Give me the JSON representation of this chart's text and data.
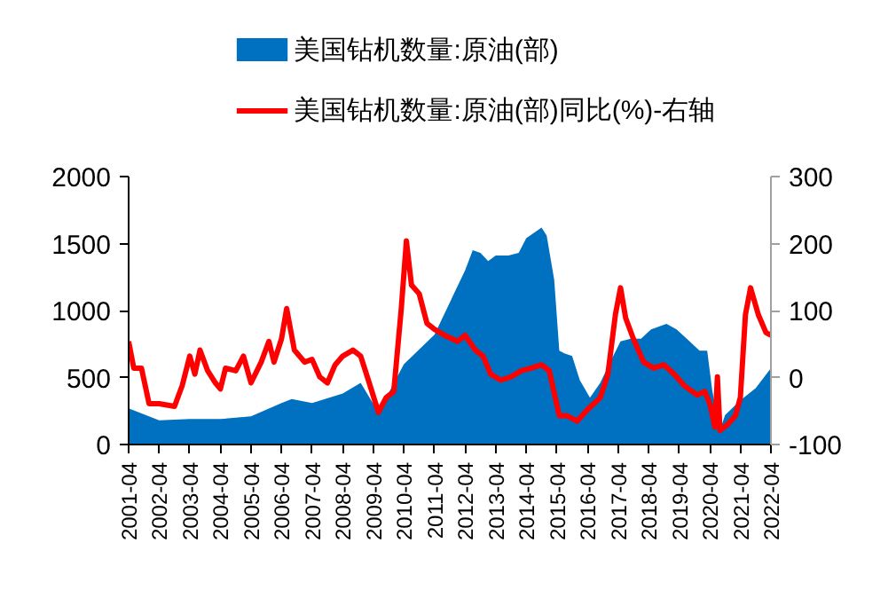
{
  "chart_data": {
    "type": "area",
    "legend": "top",
    "grid": false,
    "xlim": [
      "2001-04",
      "2022-04"
    ],
    "xticks": [
      {
        "value": "2001-04",
        "label": "2001-04"
      },
      {
        "value": "2002-04",
        "label": "2002-04"
      },
      {
        "value": "2003-04",
        "label": "2003-04"
      },
      {
        "value": "2004-04",
        "label": "2004-04"
      },
      {
        "value": "2005-04",
        "label": "2005-04"
      },
      {
        "value": "2006-04",
        "label": "2006-04"
      },
      {
        "value": "2007-04",
        "label": "2007-04"
      },
      {
        "value": "2008-04",
        "label": "2008-04"
      },
      {
        "value": "2009-04",
        "label": "2009-04"
      },
      {
        "value": "2010-04",
        "label": "2010-04"
      },
      {
        "value": "2011-04",
        "label": "2011-04"
      },
      {
        "value": "2012-04",
        "label": "2012-04"
      },
      {
        "value": "2013-04",
        "label": "2013-04"
      },
      {
        "value": "2014-04",
        "label": "2014-04"
      },
      {
        "value": "2015-04",
        "label": "2015-04"
      },
      {
        "value": "2016-04",
        "label": "2016-04"
      },
      {
        "value": "2017-04",
        "label": "2017-04"
      },
      {
        "value": "2018-04",
        "label": "2018-04"
      },
      {
        "value": "2019-04",
        "label": "2019-04"
      },
      {
        "value": "2020-04",
        "label": "2020-04"
      },
      {
        "value": "2021-04",
        "label": "2021-04"
      },
      {
        "value": "2022-04",
        "label": "2022-04"
      }
    ],
    "ylim": [
      0,
      2000
    ],
    "yticks": [
      0,
      500,
      1000,
      1500,
      2000
    ],
    "y2lim": [
      -100,
      300
    ],
    "y2ticks": [
      -100,
      0,
      100,
      200,
      300
    ],
    "series": [
      {
        "name": "美国钻机数量:原油(部)",
        "color": "#0070c0",
        "x": [
          "2001-04",
          "2002-04",
          "2003-04",
          "2004-04",
          "2005-04",
          "2006-04",
          "2006-08",
          "2007-04",
          "2008-04",
          "2008-11",
          "2009-06",
          "2010-04",
          "2011-04",
          "2012-04",
          "2012-07",
          "2012-10",
          "2013-01",
          "2013-04",
          "2013-09",
          "2014-01",
          "2014-04",
          "2014-10",
          "2014-12",
          "2015-03",
          "2015-05",
          "2015-07",
          "2015-10",
          "2016-01",
          "2016-05",
          "2016-09",
          "2017-01",
          "2017-05",
          "2017-09",
          "2018-01",
          "2018-05",
          "2018-11",
          "2019-03",
          "2019-07",
          "2019-12",
          "2020-03",
          "2020-05",
          "2020-08",
          "2020-10",
          "2021-04",
          "2021-10",
          "2022-04"
        ],
        "values": [
          270,
          180,
          190,
          190,
          210,
          310,
          340,
          310,
          380,
          460,
          240,
          600,
          820,
          1300,
          1450,
          1430,
          1370,
          1410,
          1410,
          1430,
          1540,
          1620,
          1560,
          1230,
          700,
          680,
          660,
          480,
          350,
          460,
          620,
          770,
          790,
          790,
          860,
          900,
          860,
          790,
          700,
          700,
          400,
          110,
          220,
          330,
          420,
          570
        ]
      },
      {
        "name": "美国钻机数量:原油(部)同比(%)-右轴",
        "type": "line",
        "axis": "y2",
        "color": "#ff0000",
        "x": [
          "2001-04",
          "2001-06",
          "2001-09",
          "2001-12",
          "2002-04",
          "2002-10",
          "2003-01",
          "2003-04",
          "2003-06",
          "2003-08",
          "2003-11",
          "2004-02",
          "2004-04",
          "2004-06",
          "2004-10",
          "2005-01",
          "2005-04",
          "2005-08",
          "2005-11",
          "2006-01",
          "2006-04",
          "2006-06",
          "2006-09",
          "2007-01",
          "2007-04",
          "2007-07",
          "2007-10",
          "2008-01",
          "2008-04",
          "2008-08",
          "2008-11",
          "2009-02",
          "2009-06",
          "2009-09",
          "2009-12",
          "2010-03",
          "2010-05",
          "2010-07",
          "2010-10",
          "2011-01",
          "2011-04",
          "2011-08",
          "2012-01",
          "2012-04",
          "2012-08",
          "2012-11",
          "2013-02",
          "2013-06",
          "2013-10",
          "2014-02",
          "2014-06",
          "2014-10",
          "2015-01",
          "2015-05",
          "2015-08",
          "2015-12",
          "2016-04",
          "2016-09",
          "2016-12",
          "2017-03",
          "2017-05",
          "2017-07",
          "2017-10",
          "2018-02",
          "2018-06",
          "2018-10",
          "2019-02",
          "2019-06",
          "2019-11",
          "2020-02",
          "2020-04",
          "2020-06",
          "2020-07",
          "2020-08",
          "2020-11",
          "2021-02",
          "2021-04",
          "2021-06",
          "2021-08",
          "2021-11",
          "2022-02",
          "2022-04"
        ],
        "values": [
          54,
          14,
          14,
          -39,
          -39,
          -43,
          -12,
          32,
          5,
          41,
          10,
          -8,
          -17,
          14,
          10,
          32,
          -8,
          23,
          54,
          23,
          58,
          103,
          41,
          23,
          27,
          1,
          -8,
          19,
          32,
          41,
          32,
          -4,
          -52,
          -30,
          -21,
          103,
          204,
          138,
          125,
          81,
          72,
          63,
          54,
          63,
          41,
          32,
          5,
          -4,
          1,
          10,
          14,
          19,
          10,
          -57,
          -57,
          -65,
          -48,
          -30,
          5,
          94,
          134,
          89,
          58,
          23,
          14,
          19,
          5,
          -12,
          -26,
          -21,
          -39,
          -74,
          1,
          -79,
          -70,
          -57,
          -30,
          94,
          134,
          94,
          67,
          63
        ]
      }
    ]
  }
}
